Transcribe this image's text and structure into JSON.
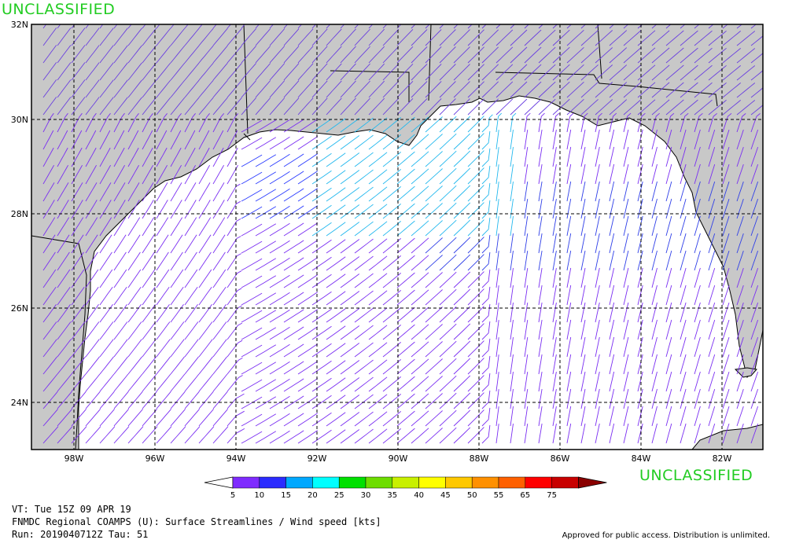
{
  "classification_top": "UNCLASSIFIED",
  "classification_bottom": "UNCLASSIFIED",
  "map": {
    "lon_labels": [
      "98W",
      "96W",
      "94W",
      "92W",
      "90W",
      "88W",
      "86W",
      "84W",
      "82W"
    ],
    "lat_labels": [
      "32N",
      "30N",
      "28N",
      "26N",
      "24N"
    ],
    "land_color": "#c8c8c8",
    "water_color": "#ffffff"
  },
  "colorbar": {
    "labels": [
      "5",
      "10",
      "15",
      "20",
      "25",
      "30",
      "35",
      "40",
      "45",
      "50",
      "55",
      "65",
      "75"
    ],
    "colors": [
      "#7f2bff",
      "#2b2bff",
      "#00a8ff",
      "#00ffff",
      "#00e000",
      "#6ddd00",
      "#c8f000",
      "#ffff00",
      "#ffc800",
      "#ff9000",
      "#ff6000",
      "#ff0000",
      "#c80000",
      "#8a0000"
    ],
    "units": "kts"
  },
  "footer": {
    "valid_time": "VT: Tue 15Z 09 APR 19",
    "product": "FNMDC Regional COAMPS (U): Surface Streamlines / Wind speed [kts]",
    "run": "Run: 2019040712Z Tau: 51",
    "approval": "Approved for public access. Distribution is unlimited."
  }
}
